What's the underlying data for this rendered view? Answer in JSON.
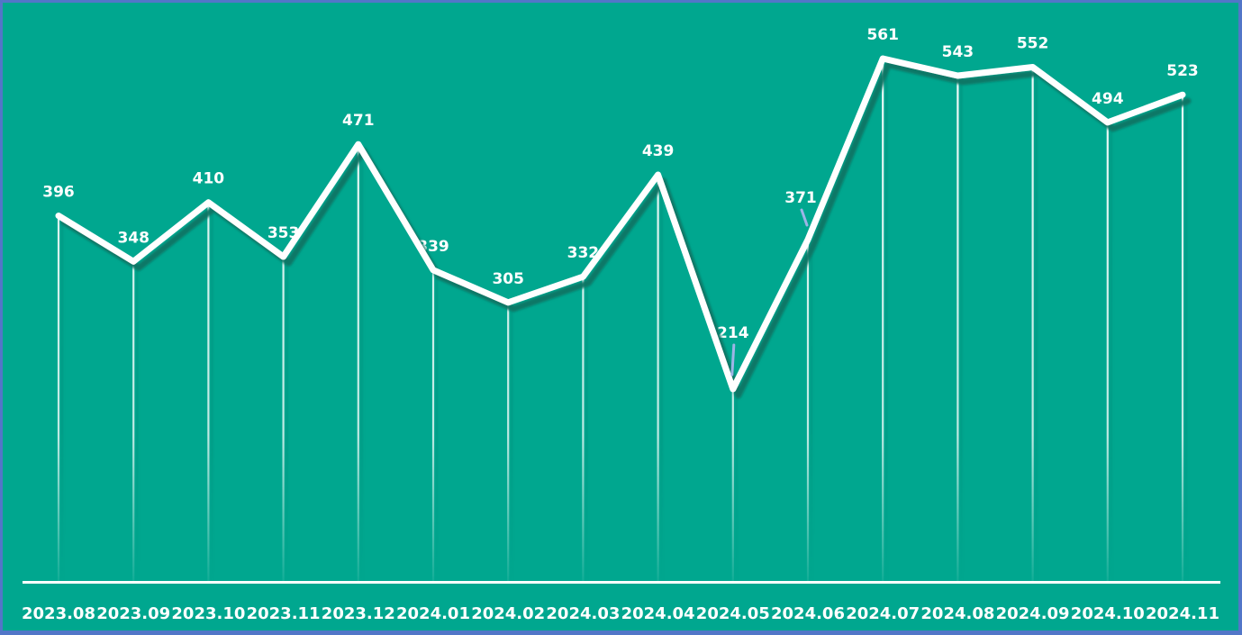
{
  "colors": {
    "background": "#00a78f",
    "border": "#5276c8",
    "line": "#ffffff",
    "line_shadow": "#0c7565",
    "drop_line": "#ffffff",
    "baseline": "#ffffff",
    "value_label_text": "#ffffff",
    "axis_label_text": "#ffffff",
    "leader_line": "#9db4e6"
  },
  "chart_data": {
    "type": "line",
    "title": "",
    "xlabel": "",
    "ylabel": "",
    "categories": [
      "2023.08",
      "2023.09",
      "2023.10",
      "2023.11",
      "2023.12",
      "2024.01",
      "2024.02",
      "2024.03",
      "2024.04",
      "2024.05",
      "2024.06",
      "2024.07",
      "2024.08",
      "2024.09",
      "2024.10",
      "2024.11"
    ],
    "values": [
      396,
      348,
      410,
      353,
      471,
      339,
      305,
      332,
      439,
      214,
      371,
      561,
      543,
      552,
      494,
      523
    ],
    "ylim": [
      0,
      620
    ],
    "grid": false,
    "legend": false,
    "data_labels": true,
    "drop_lines": true,
    "baseline": true,
    "callout_values": [
      214,
      371
    ],
    "legend_position": "none"
  }
}
